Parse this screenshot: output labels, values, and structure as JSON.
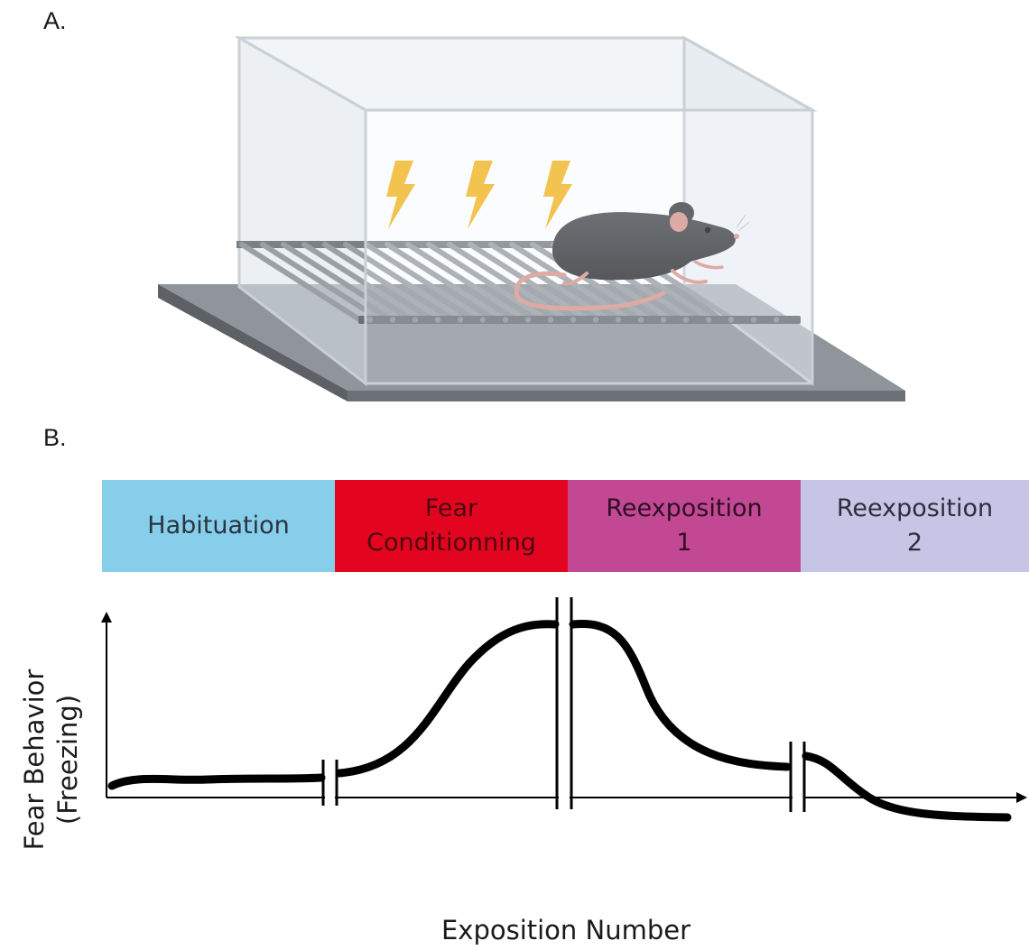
{
  "panel_a": {
    "label": "A.",
    "apparatus": {
      "name": "fear conditioning chamber",
      "shock_icon": "lightning-bolt-icon",
      "shock_count": 3,
      "subject": "mouse",
      "colors": {
        "bolt": "#f5b722",
        "mouse_body": "#3b3d40",
        "tail": "#d9968e",
        "platform": "#8f959b"
      }
    }
  },
  "panel_b": {
    "label": "B.",
    "phases": [
      {
        "lines": [
          "Habituation"
        ],
        "color": "#87ceeb"
      },
      {
        "lines": [
          "Fear",
          "Conditionning"
        ],
        "color": "#e3051f"
      },
      {
        "lines": [
          "Reexposition",
          "1"
        ],
        "color": "#c24893"
      },
      {
        "lines": [
          "Reexposition",
          "2"
        ],
        "color": "#c6c5e5"
      }
    ],
    "y_axis_label_lines": [
      "Fear Behavior",
      "(Freezing)"
    ],
    "x_axis_label": "Exposition Number"
  }
}
